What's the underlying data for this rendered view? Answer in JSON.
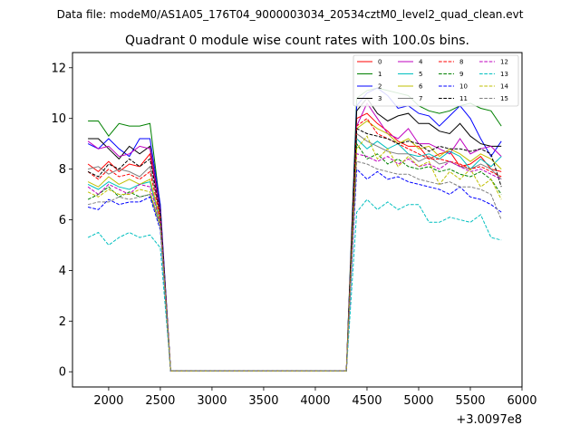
{
  "figure": {
    "suptitle": "Data file: modeM0/AS1A05_176T04_9000003034_20534cztM0_level2_quad_clean.evt"
  },
  "chart_data": {
    "type": "line",
    "title": "Quadrant 0 module wise count rates with 100.0s bins.",
    "xlabel": "",
    "ylabel": "",
    "x_offset_label": "+3.0097e8",
    "xlim": [
      1650,
      6000
    ],
    "ylim": [
      -0.6,
      12.6
    ],
    "xticks": [
      2000,
      2500,
      3000,
      3500,
      4000,
      4500,
      5000,
      5500,
      6000
    ],
    "yticks": [
      0,
      2,
      4,
      6,
      8,
      10,
      12
    ],
    "grid": false,
    "legend_position": "upper-right",
    "legend_columns": 4,
    "x": [
      1800,
      1900,
      2000,
      2100,
      2200,
      2300,
      2400,
      2500,
      2600,
      2700,
      2800,
      2900,
      3000,
      3100,
      3200,
      3300,
      3400,
      3500,
      3600,
      3700,
      3800,
      3900,
      4000,
      4100,
      4200,
      4300,
      4400,
      4500,
      4600,
      4700,
      4800,
      4900,
      5000,
      5100,
      5200,
      5300,
      5400,
      5500,
      5600,
      5700,
      5800
    ],
    "series": [
      {
        "name": "0",
        "color": "#ff0000",
        "dash": "solid",
        "values": [
          8.2,
          7.9,
          8.3,
          7.9,
          8.2,
          8.1,
          8.6,
          6.3,
          0.03,
          0.03,
          0.03,
          0.03,
          0.03,
          0.03,
          0.03,
          0.03,
          0.03,
          0.03,
          0.03,
          0.03,
          0.03,
          0.03,
          0.03,
          0.03,
          0.03,
          0.03,
          10.0,
          10.2,
          9.8,
          9.5,
          9.1,
          8.9,
          8.9,
          8.4,
          8.6,
          8.7,
          8.1,
          8.2,
          8.5,
          8.0,
          7.9
        ]
      },
      {
        "name": "1",
        "color": "#008000",
        "dash": "solid",
        "values": [
          9.9,
          9.9,
          9.3,
          9.8,
          9.7,
          9.7,
          9.8,
          6.5,
          0.03,
          0.03,
          0.03,
          0.03,
          0.03,
          0.03,
          0.03,
          0.03,
          0.03,
          0.03,
          0.03,
          0.03,
          0.03,
          0.03,
          0.03,
          0.03,
          0.03,
          0.03,
          10.8,
          11.1,
          11.2,
          11.1,
          11.0,
          10.9,
          10.5,
          10.3,
          10.2,
          10.3,
          10.5,
          10.6,
          10.4,
          10.3,
          9.7
        ]
      },
      {
        "name": "2",
        "color": "#0000ff",
        "dash": "solid",
        "values": [
          9.0,
          8.8,
          9.2,
          8.8,
          8.5,
          9.2,
          9.2,
          6.6,
          0.03,
          0.03,
          0.03,
          0.03,
          0.03,
          0.03,
          0.03,
          0.03,
          0.03,
          0.03,
          0.03,
          0.03,
          0.03,
          0.03,
          0.03,
          0.03,
          0.03,
          0.03,
          10.5,
          11.0,
          11.2,
          10.9,
          10.4,
          10.5,
          10.2,
          10.1,
          9.7,
          10.1,
          10.5,
          10.0,
          9.2,
          8.5,
          9.1
        ]
      },
      {
        "name": "3",
        "color": "#000000",
        "dash": "solid",
        "values": [
          9.2,
          9.2,
          8.8,
          8.4,
          8.9,
          8.6,
          8.9,
          6.4,
          0.03,
          0.03,
          0.03,
          0.03,
          0.03,
          0.03,
          0.03,
          0.03,
          0.03,
          0.03,
          0.03,
          0.03,
          0.03,
          0.03,
          0.03,
          0.03,
          0.03,
          0.03,
          10.3,
          10.8,
          10.2,
          9.9,
          10.1,
          10.2,
          9.8,
          9.8,
          9.5,
          9.4,
          9.8,
          9.3,
          9.0,
          8.9,
          8.9
        ]
      },
      {
        "name": "4",
        "color": "#bf00bf",
        "dash": "solid",
        "values": [
          9.1,
          8.8,
          8.9,
          8.5,
          8.6,
          8.9,
          8.8,
          6.3,
          0.03,
          0.03,
          0.03,
          0.03,
          0.03,
          0.03,
          0.03,
          0.03,
          0.03,
          0.03,
          0.03,
          0.03,
          0.03,
          0.03,
          0.03,
          0.03,
          0.03,
          0.03,
          9.7,
          10.6,
          10.0,
          9.4,
          9.2,
          9.6,
          9.0,
          9.0,
          8.8,
          8.6,
          9.2,
          8.6,
          8.8,
          8.9,
          8.5
        ]
      },
      {
        "name": "5",
        "color": "#00bfbf",
        "dash": "solid",
        "values": [
          7.4,
          7.2,
          7.5,
          7.3,
          7.2,
          7.4,
          7.5,
          5.9,
          0.03,
          0.03,
          0.03,
          0.03,
          0.03,
          0.03,
          0.03,
          0.03,
          0.03,
          0.03,
          0.03,
          0.03,
          0.03,
          0.03,
          0.03,
          0.03,
          0.03,
          0.03,
          9.2,
          8.8,
          9.1,
          8.8,
          9.0,
          8.6,
          8.5,
          8.6,
          8.4,
          8.7,
          8.5,
          8.0,
          8.4,
          8.1,
          8.5
        ]
      },
      {
        "name": "6",
        "color": "#bfbf00",
        "dash": "solid",
        "values": [
          7.5,
          7.3,
          7.7,
          7.4,
          7.6,
          7.4,
          7.6,
          6.0,
          0.03,
          0.03,
          0.03,
          0.03,
          0.03,
          0.03,
          0.03,
          0.03,
          0.03,
          0.03,
          0.03,
          0.03,
          0.03,
          0.03,
          0.03,
          0.03,
          0.03,
          0.03,
          9.6,
          9.9,
          9.6,
          9.4,
          9.0,
          9.2,
          8.8,
          8.9,
          8.5,
          8.8,
          8.6,
          8.3,
          8.6,
          8.4,
          8.0
        ]
      },
      {
        "name": "7",
        "color": "#808080",
        "dash": "solid",
        "values": [
          8.0,
          8.1,
          7.8,
          8.0,
          7.9,
          7.7,
          8.1,
          6.2,
          0.03,
          0.03,
          0.03,
          0.03,
          0.03,
          0.03,
          0.03,
          0.03,
          0.03,
          0.03,
          0.03,
          0.03,
          0.03,
          0.03,
          0.03,
          0.03,
          0.03,
          0.03,
          9.4,
          9.1,
          8.9,
          8.7,
          8.6,
          8.6,
          8.3,
          8.5,
          8.2,
          8.3,
          8.1,
          8.0,
          8.2,
          8.0,
          7.6
        ]
      },
      {
        "name": "8",
        "color": "#ff0000",
        "dash": "dashed",
        "values": [
          7.9,
          7.6,
          8.0,
          7.7,
          7.8,
          7.6,
          7.9,
          6.1,
          0.03,
          0.03,
          0.03,
          0.03,
          0.03,
          0.03,
          0.03,
          0.03,
          0.03,
          0.03,
          0.03,
          0.03,
          0.03,
          0.03,
          0.03,
          0.03,
          0.03,
          0.03,
          9.7,
          10.0,
          9.4,
          9.2,
          9.0,
          8.8,
          8.6,
          8.4,
          8.4,
          8.3,
          8.2,
          8.0,
          8.1,
          7.9,
          7.7
        ]
      },
      {
        "name": "9",
        "color": "#008000",
        "dash": "dashed",
        "values": [
          6.8,
          7.0,
          7.3,
          6.9,
          7.1,
          6.9,
          7.0,
          5.8,
          0.03,
          0.03,
          0.03,
          0.03,
          0.03,
          0.03,
          0.03,
          0.03,
          0.03,
          0.03,
          0.03,
          0.03,
          0.03,
          0.03,
          0.03,
          0.03,
          0.03,
          0.03,
          9.0,
          8.4,
          8.6,
          8.2,
          8.4,
          8.1,
          8.0,
          8.1,
          7.9,
          8.0,
          7.8,
          7.7,
          7.9,
          7.6,
          7.0
        ]
      },
      {
        "name": "10",
        "color": "#0000ff",
        "dash": "dashed",
        "values": [
          6.5,
          6.4,
          6.8,
          6.6,
          6.7,
          6.7,
          6.9,
          5.6,
          0.03,
          0.03,
          0.03,
          0.03,
          0.03,
          0.03,
          0.03,
          0.03,
          0.03,
          0.03,
          0.03,
          0.03,
          0.03,
          0.03,
          0.03,
          0.03,
          0.03,
          0.03,
          8.0,
          7.6,
          7.9,
          7.6,
          7.7,
          7.5,
          7.4,
          7.3,
          7.2,
          7.0,
          7.3,
          6.9,
          6.8,
          6.6,
          6.3
        ]
      },
      {
        "name": "11",
        "color": "#000000",
        "dash": "dashed",
        "values": [
          7.9,
          7.7,
          8.2,
          8.0,
          8.4,
          8.1,
          8.4,
          6.2,
          0.03,
          0.03,
          0.03,
          0.03,
          0.03,
          0.03,
          0.03,
          0.03,
          0.03,
          0.03,
          0.03,
          0.03,
          0.03,
          0.03,
          0.03,
          0.03,
          0.03,
          0.03,
          9.6,
          9.4,
          9.3,
          9.2,
          9.0,
          9.1,
          9.0,
          8.7,
          8.9,
          8.8,
          8.8,
          8.7,
          8.8,
          8.6,
          7.3
        ]
      },
      {
        "name": "12",
        "color": "#bf00bf",
        "dash": "dashed",
        "values": [
          7.3,
          7.0,
          7.4,
          7.2,
          7.0,
          7.4,
          7.3,
          5.9,
          0.03,
          0.03,
          0.03,
          0.03,
          0.03,
          0.03,
          0.03,
          0.03,
          0.03,
          0.03,
          0.03,
          0.03,
          0.03,
          0.03,
          0.03,
          0.03,
          0.03,
          0.03,
          8.6,
          8.5,
          8.3,
          8.5,
          8.2,
          8.4,
          8.1,
          8.2,
          8.0,
          8.3,
          8.1,
          7.9,
          8.0,
          7.8,
          7.6
        ]
      },
      {
        "name": "13",
        "color": "#00bfbf",
        "dash": "dashed",
        "values": [
          5.3,
          5.5,
          5.0,
          5.3,
          5.5,
          5.3,
          5.4,
          4.9,
          0.03,
          0.03,
          0.03,
          0.03,
          0.03,
          0.03,
          0.03,
          0.03,
          0.03,
          0.03,
          0.03,
          0.03,
          0.03,
          0.03,
          0.03,
          0.03,
          0.03,
          0.03,
          6.3,
          6.8,
          6.4,
          6.7,
          6.4,
          6.6,
          6.6,
          5.9,
          5.9,
          6.1,
          6.0,
          5.9,
          6.2,
          5.3,
          5.2
        ]
      },
      {
        "name": "14",
        "color": "#bfbf00",
        "dash": "dashed",
        "values": [
          7.1,
          6.9,
          7.2,
          7.0,
          7.0,
          7.2,
          7.1,
          5.8,
          0.03,
          0.03,
          0.03,
          0.03,
          0.03,
          0.03,
          0.03,
          0.03,
          0.03,
          0.03,
          0.03,
          0.03,
          0.03,
          0.03,
          0.03,
          0.03,
          0.03,
          0.03,
          8.8,
          9.3,
          8.4,
          8.8,
          8.1,
          8.5,
          8.1,
          8.3,
          7.4,
          7.9,
          7.6,
          8.0,
          7.3,
          7.6,
          6.8
        ]
      },
      {
        "name": "15",
        "color": "#808080",
        "dash": "dashed",
        "values": [
          6.6,
          6.7,
          6.7,
          6.9,
          6.8,
          6.9,
          7.0,
          5.7,
          0.03,
          0.03,
          0.03,
          0.03,
          0.03,
          0.03,
          0.03,
          0.03,
          0.03,
          0.03,
          0.03,
          0.03,
          0.03,
          0.03,
          0.03,
          0.03,
          0.03,
          0.03,
          8.3,
          8.2,
          8.0,
          7.9,
          7.8,
          7.8,
          7.6,
          7.5,
          7.4,
          7.5,
          7.3,
          7.3,
          7.2,
          7.0,
          6.0
        ]
      }
    ]
  }
}
